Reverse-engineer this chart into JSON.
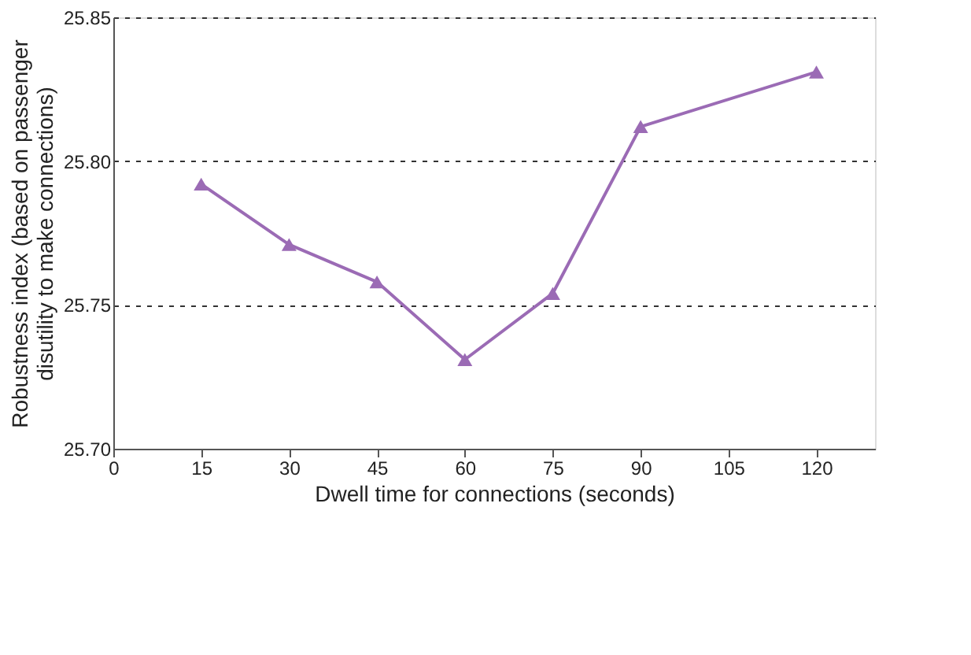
{
  "chart_data": {
    "type": "line",
    "xlabel": "Dwell time for connections (seconds)",
    "ylabel": "Robustness index (based on passenger disutility to make connections)",
    "x": [
      15,
      30,
      45,
      60,
      75,
      90,
      120
    ],
    "series": [
      {
        "color": "#9b6bb5",
        "values": [
          25.792,
          25.771,
          25.758,
          25.731,
          25.754,
          25.812,
          25.831
        ]
      }
    ],
    "xlim": [
      0,
      130
    ],
    "xticks": [
      0,
      15,
      30,
      45,
      60,
      75,
      90,
      105,
      120
    ],
    "ylim": [
      25.7,
      25.85
    ],
    "yticks": [
      {
        "value": 25.7,
        "label": "25.70"
      },
      {
        "value": 25.75,
        "label": "25.75"
      },
      {
        "value": 25.8,
        "label": "25.80"
      },
      {
        "value": 25.85,
        "label": "25.85"
      }
    ],
    "grid": "y",
    "marker": "triangle",
    "line_style": "solid"
  }
}
